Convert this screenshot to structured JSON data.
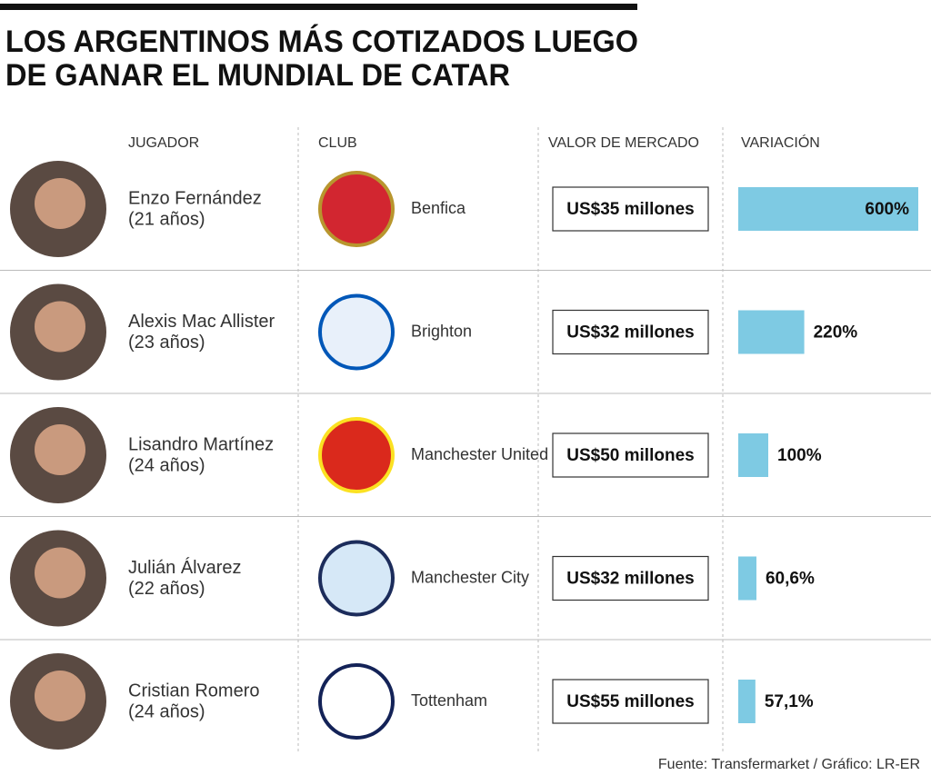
{
  "title": [
    "LOS ARGENTINOS MÁS COTIZADOS LUEGO",
    "DE GANAR EL MUNDIAL DE CATAR"
  ],
  "table": {
    "headers": [
      "JUGADOR",
      "CLUB",
      "VALOR DE MERCADO",
      "VARIACIÓN"
    ],
    "rows": [
      {
        "player": "Enzo Fernández",
        "age": "(21 años)",
        "club": "Benfica",
        "market_value": "US$35 millones"
      },
      {
        "player": "Alexis Mac Allister",
        "age": "(23 años)",
        "club": "Brighton",
        "market_value": "US$32 millones"
      },
      {
        "player": "Lisandro Martínez",
        "age": "(24 años)",
        "club": "Manchester United",
        "market_value": "US$50 millones"
      },
      {
        "player": "Julián Álvarez",
        "age": "(22 años)",
        "club": "Manchester City",
        "market_value": "US$32 millones"
      },
      {
        "player": "Cristian Romero",
        "age": "(24 años)",
        "club": "Tottenham",
        "market_value": "US$55 millones"
      }
    ]
  },
  "variation": {
    "values": [
      600,
      220,
      100,
      60.6,
      57.1
    ],
    "value_labels": [
      "600%",
      "220%",
      "100%",
      "60,6%",
      "57,1%"
    ],
    "color": "#7ecae3"
  },
  "source": "Fuente: Transfermarket / Gráfico: LR-ER"
}
